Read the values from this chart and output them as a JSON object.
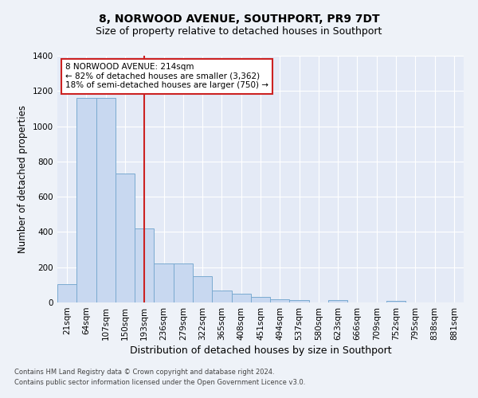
{
  "title": "8, NORWOOD AVENUE, SOUTHPORT, PR9 7DT",
  "subtitle": "Size of property relative to detached houses in Southport",
  "xlabel": "Distribution of detached houses by size in Southport",
  "ylabel": "Number of detached properties",
  "categories": [
    "21sqm",
    "64sqm",
    "107sqm",
    "150sqm",
    "193sqm",
    "236sqm",
    "279sqm",
    "322sqm",
    "365sqm",
    "408sqm",
    "451sqm",
    "494sqm",
    "537sqm",
    "580sqm",
    "623sqm",
    "666sqm",
    "709sqm",
    "752sqm",
    "795sqm",
    "838sqm",
    "881sqm"
  ],
  "values": [
    105,
    1160,
    1160,
    730,
    420,
    220,
    220,
    150,
    70,
    50,
    30,
    20,
    15,
    0,
    15,
    0,
    0,
    10,
    0,
    0,
    0
  ],
  "bar_color": "#c8d8f0",
  "bar_edge_color": "#7aaad0",
  "marker_line_after_index": 4,
  "marker_line_color": "#cc2222",
  "annotation_line1": "8 NORWOOD AVENUE: 214sqm",
  "annotation_line2": "← 82% of detached houses are smaller (3,362)",
  "annotation_line3": "18% of semi-detached houses are larger (750) →",
  "annotation_box_facecolor": "#ffffff",
  "annotation_box_edgecolor": "#cc2222",
  "ylim": [
    0,
    1400
  ],
  "yticks": [
    0,
    200,
    400,
    600,
    800,
    1000,
    1200,
    1400
  ],
  "footer_line1": "Contains HM Land Registry data © Crown copyright and database right 2024.",
  "footer_line2": "Contains public sector information licensed under the Open Government Licence v3.0.",
  "fig_facecolor": "#eef2f8",
  "ax_facecolor": "#e4eaf6",
  "grid_color": "#ffffff",
  "title_fontsize": 10,
  "subtitle_fontsize": 9,
  "tick_fontsize": 7.5,
  "ylabel_fontsize": 8.5,
  "xlabel_fontsize": 9,
  "annotation_fontsize": 7.5,
  "footer_fontsize": 6
}
